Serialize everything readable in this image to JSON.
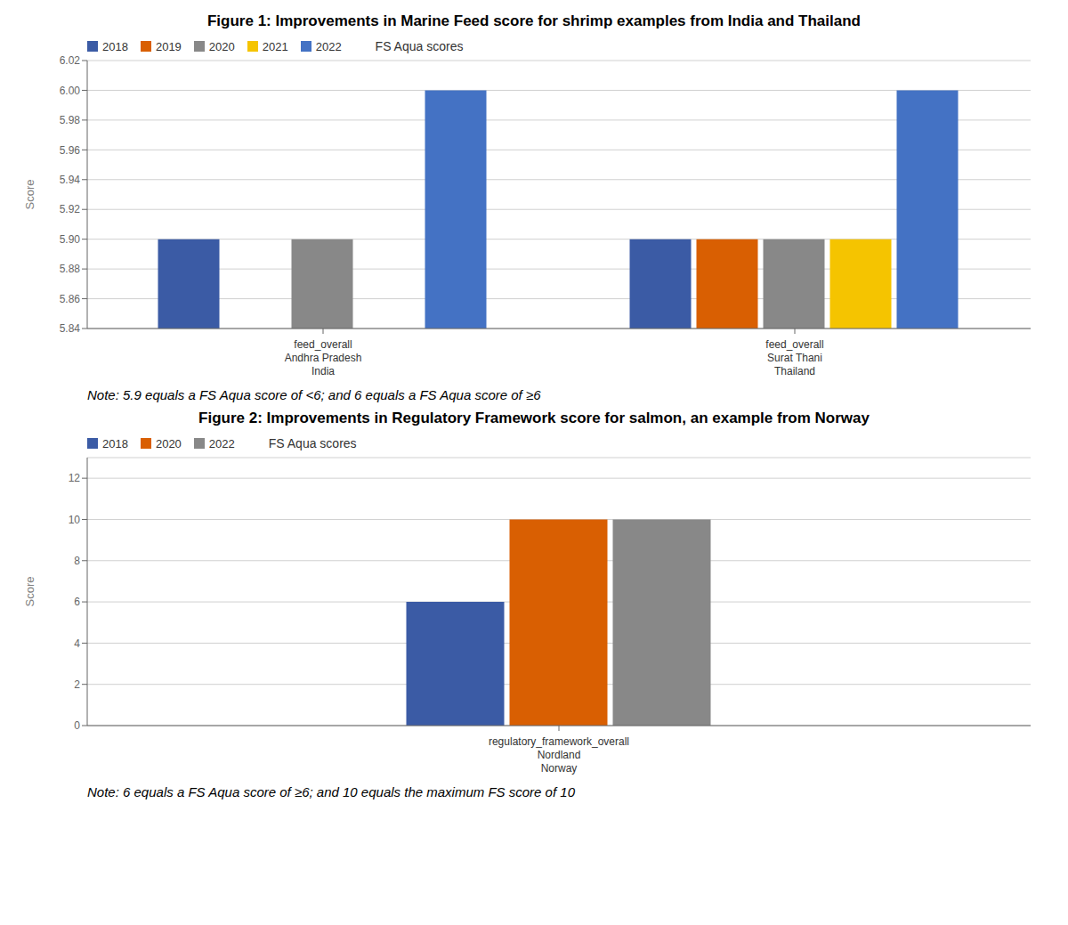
{
  "chart_data": [
    {
      "type": "bar",
      "title": "Figure 1: Improvements in Marine Feed score for shrimp examples from India and Thailand",
      "ylabel": "Score",
      "categories": [
        "feed_overall\nAndhra Pradesh\nIndia",
        "feed_overall\nSurat Thani\nThailand"
      ],
      "series": [
        {
          "name": "2018",
          "color": "#3B5BA5",
          "values": [
            5.9,
            5.9
          ]
        },
        {
          "name": "2019",
          "color": "#D95F02",
          "values": [
            null,
            5.9
          ]
        },
        {
          "name": "2020",
          "color": "#888888",
          "values": [
            5.9,
            5.9
          ]
        },
        {
          "name": "2021",
          "color": "#F5C400",
          "values": [
            null,
            5.9
          ]
        },
        {
          "name": "2022",
          "color": "#4472C4",
          "values": [
            6.0,
            6.0
          ]
        }
      ],
      "ylim": [
        5.84,
        6.02
      ],
      "yticks": [
        5.84,
        5.86,
        5.88,
        {
          "value": 5.9,
          "label": "5.90"
        },
        5.92,
        5.94,
        5.96,
        5.98,
        {
          "value": 6.0,
          "label": "6.00"
        },
        6.02
      ],
      "grid": true,
      "legend": "upper left",
      "legend_title": "FS Aqua scores",
      "annotations": [
        "Note: 5.9 equals a FS Aqua score of <6; and 6 equals a FS Aqua score of ≥6"
      ]
    },
    {
      "type": "bar",
      "title": "Figure 2: Improvements in Regulatory Framework score for salmon, an example from Norway",
      "ylabel": "Score",
      "categories": [
        "regulatory_framework_overall\nNordland\nNorway"
      ],
      "series": [
        {
          "name": "2018",
          "color": "#3B5BA5",
          "values": [
            6
          ]
        },
        {
          "name": "2020",
          "color": "#D95F02",
          "values": [
            10
          ]
        },
        {
          "name": "2022",
          "color": "#888888",
          "values": [
            10
          ]
        }
      ],
      "ylim": [
        0,
        13
      ],
      "yticks": [
        0,
        2,
        4,
        6,
        8,
        10,
        12
      ],
      "grid": true,
      "legend": "upper left",
      "legend_title": "FS Aqua scores",
      "annotations": [
        "Note: 6 equals a FS Aqua score of ≥6; and 10 equals the maximum FS score of 10"
      ]
    }
  ]
}
